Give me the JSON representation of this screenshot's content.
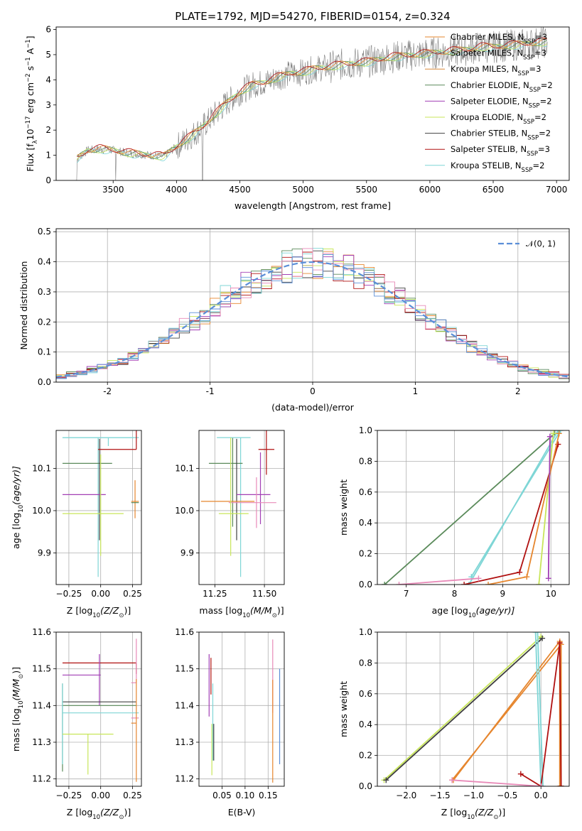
{
  "figure_title": "PLATE=1792, MJD=54270, FIBERID=0154, z=0.324",
  "colors": {
    "Chabrier MILES": "#e6862e",
    "Salpeter MILES": "#777777",
    "Kroupa MILES": "#d98a3c",
    "Chabrier ELODIE": "#5a8a5a",
    "Salpeter ELODIE": "#a23fb5",
    "Kroupa ELODIE": "#c8e65a",
    "Chabrier STELIB": "#404040",
    "Salpeter STELIB": "#b01010",
    "Kroupa STELIB": "#7fd6d6",
    "Chabrier MILES pink": "#e88ab8",
    "data": "#808080",
    "gaussian": "#5b8fd8"
  },
  "chart_data": [
    {
      "type": "line",
      "id": "spectrum",
      "xlabel": "wavelength [Angstrom, rest frame]",
      "ylabel_parts": [
        "Flux [f",
        "λ",
        "10",
        "−17",
        " erg cm",
        "−2",
        " s",
        "−1",
        " A",
        "−1",
        "]"
      ],
      "xlim": [
        3050,
        7100
      ],
      "ylim": [
        0,
        6.1
      ],
      "xticks": [
        3500,
        4000,
        4500,
        5000,
        5500,
        6000,
        6500,
        7000
      ],
      "yticks": [
        0,
        1,
        2,
        3,
        4,
        5,
        6
      ],
      "continuum_x": [
        3200,
        3300,
        3400,
        3500,
        3600,
        3700,
        3800,
        3900,
        4000,
        4100,
        4200,
        4300,
        4400,
        4500,
        4600,
        4700,
        4800,
        4900,
        5000,
        5100,
        5200,
        5300,
        5400,
        5500,
        5600,
        5700,
        5800,
        5900,
        6000,
        6100,
        6200,
        6300,
        6400,
        6500,
        6600,
        6700,
        6800,
        6900
      ],
      "continuum_y": [
        0.8,
        1.2,
        1.25,
        1.2,
        1.1,
        1.05,
        1.0,
        0.95,
        1.35,
        1.7,
        2.1,
        2.6,
        3.1,
        3.5,
        3.8,
        3.9,
        4.1,
        4.25,
        4.3,
        4.45,
        4.5,
        4.6,
        4.65,
        4.7,
        4.8,
        4.9,
        4.95,
        5.0,
        5.05,
        5.1,
        5.15,
        5.2,
        5.3,
        5.3,
        5.35,
        5.4,
        5.45,
        5.5
      ],
      "legend": [
        {
          "label": "Chabrier MILES, N",
          "sub": "SSP",
          "tail": "=3"
        },
        {
          "label": "Salpeter MILES, N",
          "sub": "SSP",
          "tail": "=3"
        },
        {
          "label": "Kroupa MILES, N",
          "sub": "SSP",
          "tail": "=3"
        },
        {
          "label": "Chabrier ELODIE, N",
          "sub": "SSP",
          "tail": "=2"
        },
        {
          "label": "Salpeter ELODIE, N",
          "sub": "SSP",
          "tail": "=2"
        },
        {
          "label": "Kroupa ELODIE, N",
          "sub": "SSP",
          "tail": "=2"
        },
        {
          "label": "Chabrier STELIB, N",
          "sub": "SSP",
          "tail": "=2"
        },
        {
          "label": "Salpeter STELIB, N",
          "sub": "SSP",
          "tail": "=3"
        },
        {
          "label": "Kroupa STELIB, N",
          "sub": "SSP",
          "tail": "=2"
        }
      ]
    },
    {
      "type": "histogram",
      "id": "residuals",
      "xlabel": "(data-model)/error",
      "ylabel": "Normed distribution",
      "xlim": [
        -2.5,
        2.5
      ],
      "ylim": [
        0,
        0.51
      ],
      "xticks": [
        -2,
        -1,
        0,
        1,
        2
      ],
      "yticks": [
        0.0,
        0.1,
        0.2,
        0.3,
        0.4,
        0.5
      ],
      "legend_label": "𝒩(0, 1)",
      "bin_width": 0.1,
      "bins_start": -2.5
    },
    {
      "type": "errorbar",
      "id": "age-vs-Z",
      "xlabel_parts": [
        "Z [log",
        "10",
        "(Z/Z",
        "⊙",
        ")]"
      ],
      "ylabel_parts": [
        "age  [log",
        "10",
        "(age/yr)]"
      ],
      "xlim": [
        -0.35,
        0.32
      ],
      "ylim": [
        9.825,
        10.19
      ],
      "xticks": [
        -0.25,
        0.0,
        0.25
      ],
      "xticklabels": [
        "−0.25",
        "0.00",
        "0.25"
      ],
      "yticks": [
        9.9,
        10.0,
        10.1
      ],
      "points": [
        {
          "x": -0.02,
          "xe": [
            0.28,
            0.28
          ],
          "y": 10.173,
          "ye": [
            0.33,
            0.0
          ],
          "c": "Kroupa STELIB"
        },
        {
          "x": 0.06,
          "xe": [
            0.36,
            0.24
          ],
          "y": 10.173,
          "ye": [
            0.02,
            0.0
          ],
          "c": "Kroupa STELIB"
        },
        {
          "x": -0.01,
          "xe": [
            0.29,
            0.1
          ],
          "y": 10.112,
          "ye": [
            0.0,
            0.0
          ],
          "c": "Chabrier ELODIE"
        },
        {
          "x": -0.01,
          "xe": [
            0.0,
            0.0
          ],
          "y": 10.04,
          "ye": [
            0.11,
            0.13
          ],
          "c": "Chabrier STELIB"
        },
        {
          "x": 0.28,
          "xe": [
            0.3,
            0.0
          ],
          "y": 10.145,
          "ye": [
            0.0,
            0.06
          ],
          "c": "Salpeter STELIB"
        },
        {
          "x": -0.04,
          "xe": [
            0.26,
            0.08
          ],
          "y": 10.038,
          "ye": [
            0.0,
            0.0
          ],
          "c": "Salpeter ELODIE"
        },
        {
          "x": 0.27,
          "xe": [
            0.03,
            0.03
          ],
          "y": 10.022,
          "ye": [
            0.04,
            0.05
          ],
          "c": "Chabrier MILES"
        },
        {
          "x": 0.27,
          "xe": [
            0.03,
            0.03
          ],
          "y": 10.019,
          "ye": [
            0.0,
            0.0
          ],
          "c": "Chabrier ELODIE"
        },
        {
          "x": 0.0,
          "xe": [
            0.3,
            0.18
          ],
          "y": 9.993,
          "ye": [
            0.1,
            0.14
          ],
          "c": "Kroupa ELODIE"
        }
      ]
    },
    {
      "type": "errorbar",
      "id": "age-vs-mass",
      "xlabel_parts": [
        "mass [log",
        "10",
        "(M/M",
        "⊙",
        ")]"
      ],
      "xlim": [
        11.17,
        11.6
      ],
      "ylim": [
        9.825,
        10.19
      ],
      "xticks": [
        11.25,
        11.5
      ],
      "xticklabels": [
        "11.25",
        "11.50"
      ],
      "yticks": [
        9.9,
        10.0,
        10.1
      ],
      "points": [
        {
          "x": 11.38,
          "xe": [
            0.12,
            0.05
          ],
          "y": 10.173,
          "ye": [
            0.33,
            0.0
          ],
          "c": "Kroupa STELIB"
        },
        {
          "x": 11.34,
          "xe": [
            0.12,
            0.05
          ],
          "y": 10.112,
          "ye": [
            0.15,
            0.06
          ],
          "c": "Chabrier ELODIE"
        },
        {
          "x": 11.36,
          "xe": [
            0.0,
            0.0
          ],
          "y": 10.04,
          "ye": [
            0.11,
            0.13
          ],
          "c": "Chabrier STELIB"
        },
        {
          "x": 11.51,
          "xe": [
            0.04,
            0.04
          ],
          "y": 10.145,
          "ye": [
            0.06,
            0.06
          ],
          "c": "Salpeter STELIB"
        },
        {
          "x": 11.48,
          "xe": [
            0.12,
            0.05
          ],
          "y": 10.038,
          "ye": [
            0.07,
            0.1
          ],
          "c": "Salpeter ELODIE"
        },
        {
          "x": 11.25,
          "xe": [
            0.07,
            0.2
          ],
          "y": 10.022,
          "ye": [
            0.0,
            0.0
          ],
          "c": "Chabrier MILES"
        },
        {
          "x": 11.46,
          "xe": [
            0.14,
            0.1
          ],
          "y": 10.019,
          "ye": [
            0.06,
            0.06
          ],
          "c": "Chabrier MILES pink"
        },
        {
          "x": 11.33,
          "xe": [
            0.06,
            0.09
          ],
          "y": 9.993,
          "ye": [
            0.1,
            0.18
          ],
          "c": "Kroupa ELODIE"
        }
      ]
    },
    {
      "type": "line",
      "id": "weight-vs-age",
      "xlabel_parts": [
        "age  [log",
        "10",
        "(age/yr)]"
      ],
      "ylabel": "mass weight",
      "xlim": [
        6.4,
        10.38
      ],
      "ylim": [
        0,
        1.0
      ],
      "xticks": [
        7,
        8,
        9,
        10
      ],
      "yticks": [
        0.0,
        0.2,
        0.4,
        0.6,
        0.8,
        1.0
      ],
      "series": [
        {
          "c": "Chabrier ELODIE",
          "x": [
            6.55,
            10.08
          ],
          "y": [
            0.0,
            0.98
          ]
        },
        {
          "c": "Kroupa STELIB",
          "x": [
            8.3,
            10.15
          ],
          "y": [
            0.0,
            1.0
          ]
        },
        {
          "c": "Kroupa STELIB",
          "x": [
            8.35,
            10.2
          ],
          "y": [
            0.05,
            1.0
          ]
        },
        {
          "c": "Salpeter STELIB",
          "x": [
            8.2,
            9.35,
            10.15
          ],
          "y": [
            0.0,
            0.08,
            0.91
          ]
        },
        {
          "c": "Chabrier MILES",
          "x": [
            8.7,
            9.5,
            10.17
          ],
          "y": [
            0.0,
            0.05,
            0.98
          ]
        },
        {
          "c": "Kroupa ELODIE",
          "x": [
            9.75,
            10.05
          ],
          "y": [
            0.0,
            0.98
          ]
        },
        {
          "c": "Salpeter ELODIE",
          "x": [
            9.95,
            9.98
          ],
          "y": [
            0.04,
            0.96
          ]
        },
        {
          "c": "Chabrier MILES pink",
          "x": [
            6.85,
            8.5
          ],
          "y": [
            0.0,
            0.04
          ]
        }
      ]
    },
    {
      "type": "errorbar",
      "id": "mass-vs-Z",
      "xlabel_parts": [
        "Z [log",
        "10",
        "(Z/Z",
        "⊙",
        ")]"
      ],
      "ylabel_parts": [
        "mass [log",
        "10",
        "(M/M",
        "⊙",
        ")]"
      ],
      "xlim": [
        -0.35,
        0.32
      ],
      "ylim": [
        11.18,
        11.6
      ],
      "xticks": [
        -0.25,
        0.0,
        0.25
      ],
      "xticklabels": [
        "−0.25",
        "0.00",
        "0.25"
      ],
      "yticks": [
        11.2,
        11.3,
        11.4,
        11.5,
        11.6
      ],
      "points": [
        {
          "x": 0.07,
          "xe": [
            0.37,
            0.21
          ],
          "y": 11.516,
          "ye": [
            0.0,
            0.0
          ],
          "c": "Salpeter STELIB"
        },
        {
          "x": 0.28,
          "xe": [
            0.0,
            0.0
          ],
          "y": 11.516,
          "ye": [
            0.03,
            0.0
          ],
          "c": "Salpeter STELIB"
        },
        {
          "x": -0.14,
          "xe": [
            0.16,
            0.14
          ],
          "y": 11.483,
          "ye": [
            0.0,
            0.0
          ],
          "c": "Salpeter ELODIE"
        },
        {
          "x": -0.01,
          "xe": [
            0.0,
            0.0
          ],
          "y": 11.49,
          "ye": [
            0.09,
            0.05
          ],
          "c": "Salpeter ELODIE"
        },
        {
          "x": -0.01,
          "xe": [
            0.29,
            0.29
          ],
          "y": 11.41,
          "ye": [
            0.0,
            0.0
          ],
          "c": "Chabrier STELIB"
        },
        {
          "x": -0.01,
          "xe": [
            0.29,
            0.29
          ],
          "y": 11.4,
          "ye": [
            0.0,
            0.0
          ],
          "c": "Chabrier ELODIE"
        },
        {
          "x": -0.3,
          "xe": [
            0.0,
            0.0
          ],
          "y": 11.4,
          "ye": [
            0.18,
            0.06
          ],
          "c": "Chabrier ELODIE"
        },
        {
          "x": -0.3,
          "xe": [
            0.0,
            0.0
          ],
          "y": 11.38,
          "ye": [
            0.14,
            0.08
          ],
          "c": "Kroupa STELIB"
        },
        {
          "x": 0.0,
          "xe": [
            0.3,
            0.3
          ],
          "y": 11.38,
          "ye": [
            0.0,
            0.0
          ],
          "c": "Kroupa STELIB"
        },
        {
          "x": 0.28,
          "xe": [
            0.04,
            0.0
          ],
          "y": 11.462,
          "ye": [
            0.0,
            0.12
          ],
          "c": "Chabrier MILES pink"
        },
        {
          "x": 0.27,
          "xe": [
            0.03,
            0.03
          ],
          "y": 11.366,
          "ye": [
            0.0,
            0.0
          ],
          "c": "Chabrier MILES pink"
        },
        {
          "x": 0.28,
          "xe": [
            0.04,
            0.0
          ],
          "y": 11.352,
          "ye": [
            0.16,
            0.12
          ],
          "c": "Chabrier MILES"
        },
        {
          "x": -0.1,
          "xe": [
            0.2,
            0.2
          ],
          "y": 11.322,
          "ye": [
            0.11,
            0.0
          ],
          "c": "Kroupa ELODIE"
        }
      ]
    },
    {
      "type": "errorbar",
      "id": "mass-vs-ebv",
      "xlabel": "E(B-V)",
      "xlim": [
        0.0,
        0.185
      ],
      "ylim": [
        11.18,
        11.6
      ],
      "xticks": [
        0.05,
        0.1,
        0.15
      ],
      "xticklabels": [
        "0.05",
        "0.10",
        "0.15"
      ],
      "yticks": [
        11.2,
        11.3,
        11.4,
        11.5,
        11.6
      ],
      "points": [
        {
          "x": 0.022,
          "xe": [
            0,
            0
          ],
          "y": 11.45,
          "ye": [
            0.08,
            0.09
          ],
          "c": "Salpeter ELODIE"
        },
        {
          "x": 0.026,
          "xe": [
            0,
            0
          ],
          "y": 11.48,
          "ye": [
            0.05,
            0.05
          ],
          "c": "Salpeter STELIB"
        },
        {
          "x": 0.03,
          "xe": [
            0,
            0
          ],
          "y": 11.35,
          "ye": [
            0.1,
            0.11
          ],
          "c": "Kroupa STELIB"
        },
        {
          "x": 0.028,
          "xe": [
            0,
            0
          ],
          "y": 11.3,
          "ye": [
            0.09,
            0.05
          ],
          "c": "Kroupa ELODIE"
        },
        {
          "x": 0.032,
          "xe": [
            0,
            0
          ],
          "y": 11.3,
          "ye": [
            0.05,
            0.05
          ],
          "c": "Chabrier STELIB"
        },
        {
          "x": 0.16,
          "xe": [
            0,
            0
          ],
          "y": 11.44,
          "ye": [
            0.06,
            0.14
          ],
          "c": "Chabrier MILES pink"
        },
        {
          "x": 0.16,
          "xe": [
            0,
            0
          ],
          "y": 11.33,
          "ye": [
            0.14,
            0.14
          ],
          "c": "Chabrier MILES"
        },
        {
          "x": 0.175,
          "xe": [
            0,
            0
          ],
          "y": 11.37,
          "ye": [
            0.13,
            0.13
          ],
          "c": "gaussian"
        }
      ]
    },
    {
      "type": "line",
      "id": "weight-vs-Z",
      "xlabel_parts": [
        "Z [log",
        "10",
        "(Z/Z",
        "⊙",
        ")]"
      ],
      "ylabel": "mass weight",
      "xlim": [
        -2.43,
        0.42
      ],
      "ylim": [
        0,
        1.0
      ],
      "xticks": [
        -2.0,
        -1.5,
        -1.0,
        -0.5,
        0.0
      ],
      "xticklabels": [
        "−2.0",
        "−1.5",
        "−1.0",
        "−0.5",
        "0.0"
      ],
      "yticks": [
        0.0,
        0.2,
        0.4,
        0.6,
        0.8,
        1.0
      ],
      "series": [
        {
          "c": "Kroupa ELODIE",
          "x": [
            -2.33,
            0.0
          ],
          "y": [
            0.04,
            0.97
          ]
        },
        {
          "c": "Chabrier STELIB",
          "x": [
            -2.3,
            0.02
          ],
          "y": [
            0.04,
            0.96
          ]
        },
        {
          "c": "Chabrier MILES",
          "x": [
            -1.3,
            0.28,
            0.28
          ],
          "y": [
            0.04,
            0.94,
            0.0
          ]
        },
        {
          "c": "Chabrier MILES",
          "x": [
            -1.32,
            0.3,
            0.3
          ],
          "y": [
            0.04,
            0.92,
            0.0
          ]
        },
        {
          "c": "Kroupa STELIB",
          "x": [
            -0.08,
            0.0
          ],
          "y": [
            1.0,
            0.0
          ]
        },
        {
          "c": "Kroupa STELIB",
          "x": [
            -0.05,
            0.03
          ],
          "y": [
            1.0,
            0.0
          ]
        },
        {
          "c": "Salpeter STELIB",
          "x": [
            -0.3,
            0.0,
            0.28,
            0.3
          ],
          "y": [
            0.08,
            0.0,
            0.93,
            0.0
          ]
        },
        {
          "c": "Chabrier MILES pink",
          "x": [
            -1.32,
            0.0
          ],
          "y": [
            0.04,
            0.0
          ]
        }
      ]
    }
  ]
}
